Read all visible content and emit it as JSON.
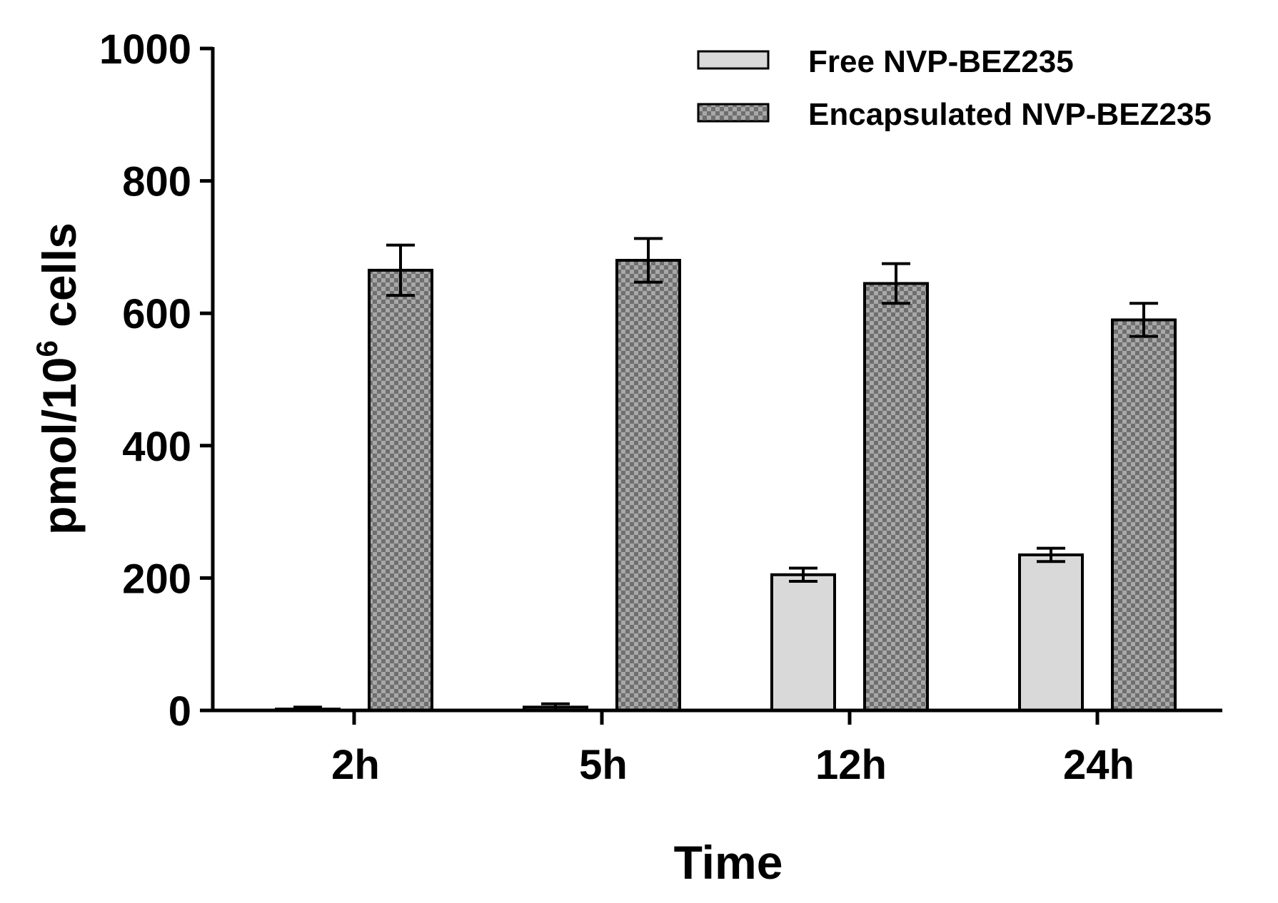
{
  "chart_data": {
    "type": "bar",
    "title": "",
    "xlabel": "Time",
    "ylabel": {
      "prefix": "pmol/10",
      "superscript": "6",
      "suffix": " cells"
    },
    "categories": [
      "2h",
      "5h",
      "12h",
      "24h"
    ],
    "ylim": [
      0,
      1000
    ],
    "yticks": [
      0,
      200,
      400,
      600,
      800,
      1000
    ],
    "legend_position": "top-right",
    "grid": false,
    "series": [
      {
        "name": "Free NVP-BEZ235",
        "values": [
          2,
          5,
          205,
          235
        ],
        "errors": [
          3,
          5,
          10,
          10
        ],
        "fill": "#d9d9d9",
        "pattern": "solid"
      },
      {
        "name": "Encapsulated NVP-BEZ235",
        "values": [
          665,
          680,
          645,
          590
        ],
        "errors": [
          38,
          33,
          30,
          25
        ],
        "fill": "#7a7a7a",
        "pattern": "checker"
      }
    ]
  }
}
